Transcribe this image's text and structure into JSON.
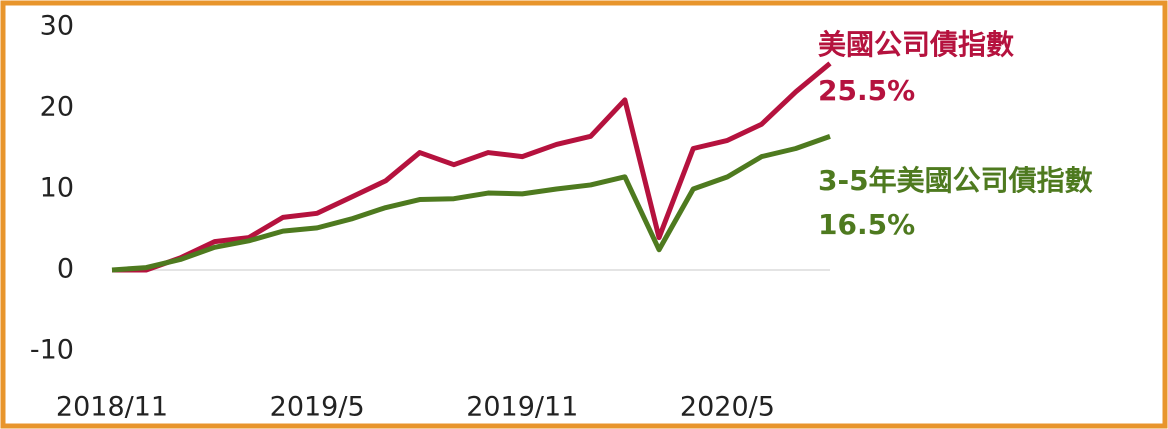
{
  "chart_data": {
    "type": "line",
    "x": [
      "2018/11",
      "2018/12",
      "2019/1",
      "2019/2",
      "2019/3",
      "2019/4",
      "2019/5",
      "2019/6",
      "2019/7",
      "2019/8",
      "2019/9",
      "2019/10",
      "2019/11",
      "2019/12",
      "2020/1",
      "2020/2",
      "2020/3",
      "2020/4",
      "2020/5",
      "2020/6",
      "2020/7",
      "2020/8"
    ],
    "xticks": [
      "2018/11",
      "2019/5",
      "2019/11",
      "2020/5"
    ],
    "ylim": [
      -10,
      30
    ],
    "yticks": [
      -10,
      0,
      10,
      20,
      30
    ],
    "zero_line": true,
    "series": [
      {
        "name": "美國公司債指數",
        "color": "#b5123e",
        "values": [
          0,
          0,
          1.5,
          3.5,
          4,
          6.5,
          7,
          9,
          11,
          14.5,
          13,
          14.5,
          14,
          15.5,
          16.5,
          21,
          4,
          15,
          16,
          18,
          22,
          25.5
        ],
        "value_labels": [
          null,
          null,
          null,
          null,
          null,
          null,
          null,
          null,
          null,
          null,
          null,
          null,
          null,
          null,
          null,
          null,
          null,
          null,
          null,
          null,
          null,
          "25.5%"
        ]
      },
      {
        "name": "3-5年美國公司債指數",
        "color": "#4e7a1f",
        "values": [
          0,
          0.3,
          1.3,
          2.8,
          3.6,
          4.8,
          5.2,
          6.3,
          7.7,
          8.7,
          8.8,
          9.5,
          9.4,
          10,
          10.5,
          11.5,
          2.5,
          10,
          11.5,
          14,
          15,
          16.5
        ],
        "value_labels": [
          null,
          null,
          null,
          null,
          null,
          null,
          null,
          null,
          null,
          null,
          null,
          null,
          null,
          null,
          null,
          null,
          null,
          null,
          null,
          null,
          null,
          "16.5%"
        ]
      }
    ]
  }
}
